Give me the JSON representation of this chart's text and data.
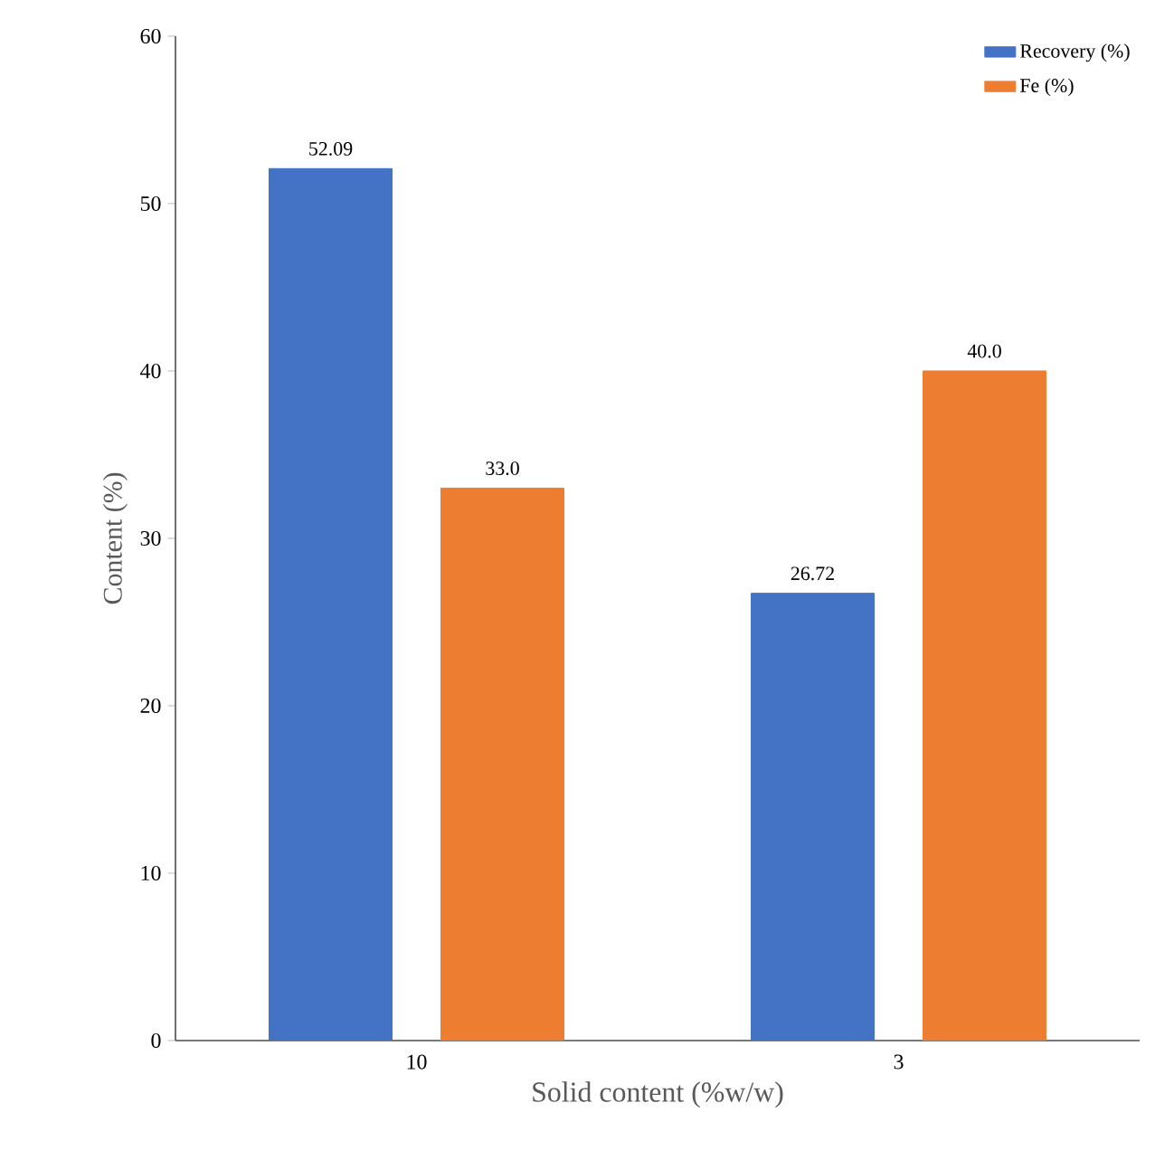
{
  "chart_data": {
    "type": "bar",
    "xlabel": "Solid content (%w/w)",
    "ylabel": "Content (%)",
    "categories": [
      "10",
      "3"
    ],
    "series": [
      {
        "name": "Recovery (%)",
        "color": "#4472c4",
        "values": [
          52.09,
          26.72
        ],
        "value_labels": [
          "52.09",
          "26.72"
        ]
      },
      {
        "name": "Fe (%)",
        "color": "#ed7d31",
        "values": [
          33.0,
          40.0
        ],
        "value_labels": [
          "33.0",
          "40.0"
        ]
      }
    ],
    "ylim": [
      0,
      60
    ],
    "yticks": [
      0,
      10,
      20,
      30,
      40,
      50,
      60
    ],
    "grid": false,
    "legend": "top right"
  }
}
